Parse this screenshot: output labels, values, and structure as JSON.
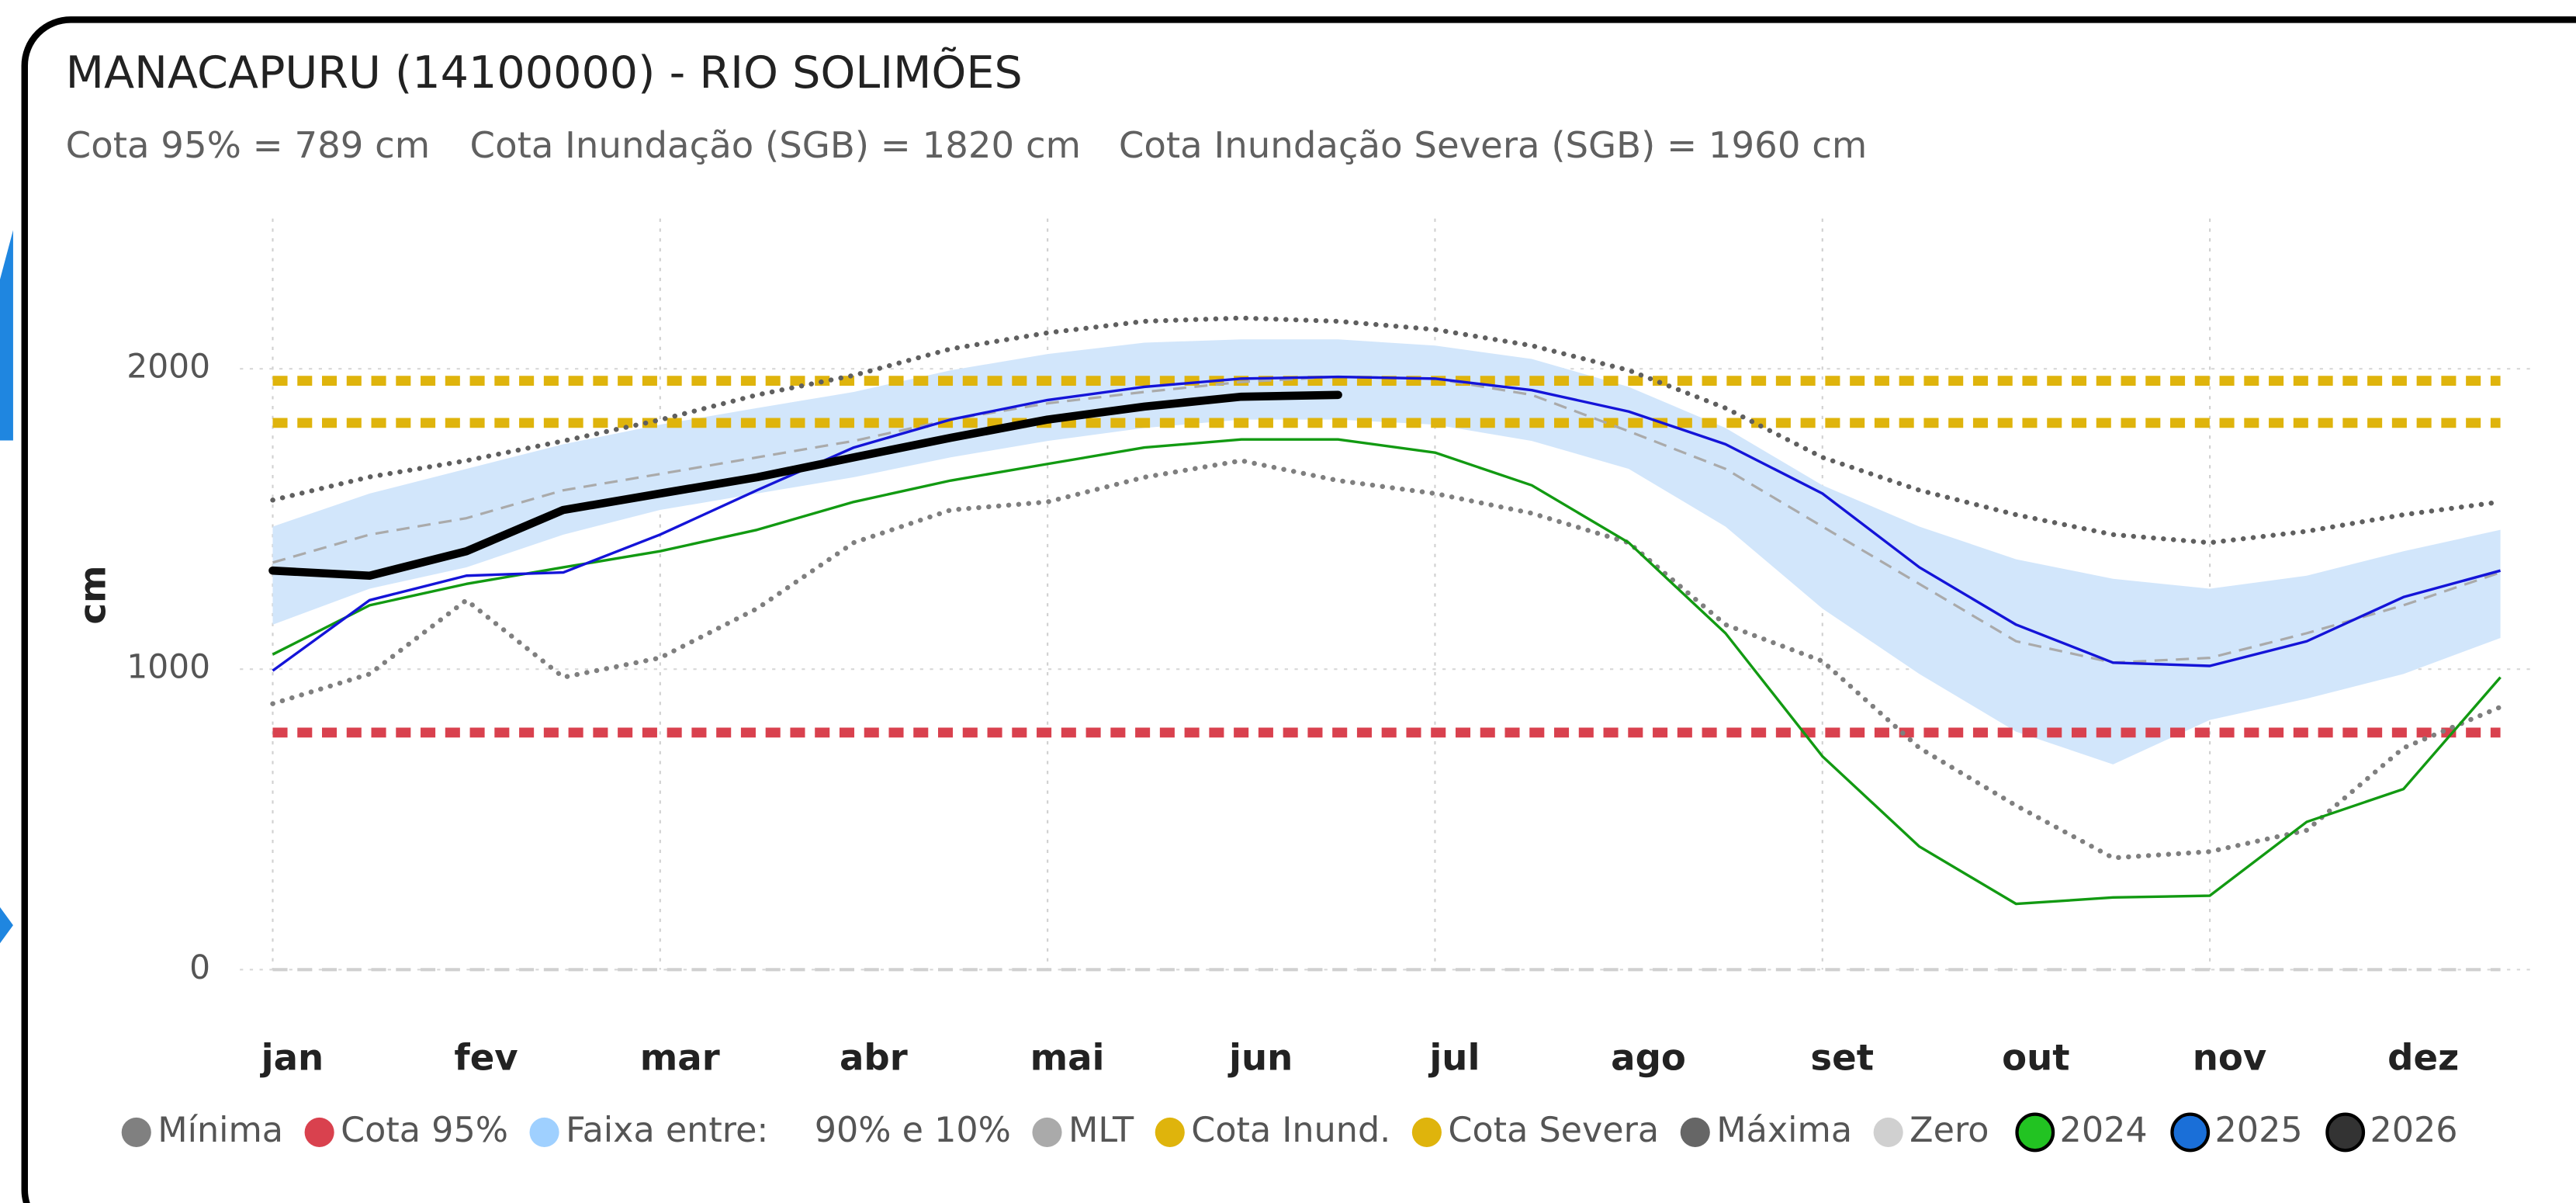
{
  "chart_data": {
    "type": "line",
    "title": "MANACAPURU (14100000) - RIO SOLIMÕES",
    "subtitle": [
      "Cota 95% = 789 cm",
      "Cota Inundação (SGB) = 1820 cm",
      "Cota Inundação Severa (SGB) = 1960 cm"
    ],
    "y_label": "cm",
    "categories": [
      "jan",
      null,
      "fev",
      null,
      "mar",
      null,
      "abr",
      null,
      "mai",
      null,
      "jun",
      null,
      "jul",
      null,
      "ago",
      null,
      "set",
      null,
      "out",
      null,
      "nov",
      null,
      "dez",
      null
    ],
    "ylim": [
      0,
      2500
    ],
    "yticks": [
      0,
      1000,
      2000
    ],
    "grid": true,
    "legend": "bottom",
    "series": [
      {
        "name": "Mínima",
        "kind": "line",
        "style": "dotted",
        "color": "#7f7f7f",
        "legend_color": "#808080",
        "values": [
          885,
          984,
          1230,
          973,
          1038,
          1202,
          1421,
          1530,
          1557,
          1639,
          1694,
          1628,
          1585,
          1519,
          1421,
          1148,
          1027,
          738,
          546,
          372,
          393,
          464,
          738,
          874
        ]
      },
      {
        "name": "Cota 95%",
        "kind": "ref",
        "style": "dashed-thick",
        "color": "#d9414e",
        "value": 789
      },
      {
        "name": "Faixa entre:",
        "label": "90% e 10%",
        "kind": "band",
        "color": "#d2e6fb",
        "legend_color": "#9fd0ff",
        "upper": [
          1475,
          1585,
          1667,
          1749,
          1814,
          1869,
          1923,
          1995,
          2049,
          2087,
          2098,
          2098,
          2077,
          2033,
          1940,
          1803,
          1612,
          1475,
          1366,
          1301,
          1268,
          1311,
          1393,
          1464
        ],
        "lower": [
          1148,
          1268,
          1339,
          1448,
          1530,
          1585,
          1639,
          1705,
          1760,
          1803,
          1831,
          1831,
          1814,
          1760,
          1667,
          1475,
          1202,
          984,
          792,
          683,
          831,
          902,
          984,
          1104
        ]
      },
      {
        "name": "MLT",
        "kind": "line",
        "style": "dashed",
        "color": "#aaaaaa",
        "values": [
          1355,
          1448,
          1503,
          1596,
          1650,
          1705,
          1760,
          1831,
          1885,
          1923,
          1956,
          1973,
          1967,
          1913,
          1792,
          1667,
          1475,
          1284,
          1093,
          1022,
          1038,
          1120,
          1213,
          1322
        ]
      },
      {
        "name": "Cota Inund.",
        "kind": "ref",
        "style": "dashed-thick",
        "color": "#dfb40c",
        "value": 1820
      },
      {
        "name": "Cota Severa",
        "kind": "ref",
        "style": "dashed-thick",
        "color": "#dfb40c",
        "value": 1960
      },
      {
        "name": "Máxima",
        "kind": "line",
        "style": "dotted",
        "color": "#5f5f5f",
        "legend_color": "#666666",
        "values": [
          1563,
          1640,
          1694,
          1760,
          1830,
          1913,
          1978,
          2066,
          2120,
          2158,
          2169,
          2158,
          2131,
          2077,
          1995,
          1869,
          1705,
          1596,
          1514,
          1448,
          1421,
          1459,
          1514,
          1557
        ]
      },
      {
        "name": "Zero",
        "kind": "ref",
        "style": "dashed-light",
        "color": "#d0d0d0",
        "value": 0
      },
      {
        "name": "2024",
        "kind": "line",
        "style": "solid",
        "color": "#129a12",
        "legend_color": "#22c322",
        "legend_outline": "#000000",
        "values": [
          1049,
          1213,
          1284,
          1339,
          1393,
          1464,
          1557,
          1628,
          1683,
          1738,
          1765,
          1765,
          1721,
          1612,
          1421,
          1120,
          710,
          410,
          219,
          240,
          246,
          492,
          601,
          973
        ]
      },
      {
        "name": "2025",
        "kind": "line",
        "style": "solid",
        "color": "#1414d8",
        "legend_color": "#1a6fd8",
        "legend_outline": "#000000",
        "values": [
          995,
          1230,
          1311,
          1322,
          1448,
          1596,
          1738,
          1831,
          1896,
          1940,
          1967,
          1973,
          1967,
          1929,
          1858,
          1749,
          1585,
          1339,
          1148,
          1022,
          1011,
          1093,
          1240,
          1328
        ]
      },
      {
        "name": "2026",
        "kind": "line",
        "style": "thick",
        "color": "#000000",
        "legend_color": "#333333",
        "legend_outline": "#000000",
        "values": [
          1328,
          1311,
          1393,
          1530,
          1585,
          1639,
          1705,
          1770,
          1831,
          1874,
          1907,
          1913,
          null,
          null,
          null,
          null,
          null,
          null,
          null,
          null,
          null,
          null,
          null,
          null
        ]
      }
    ]
  }
}
